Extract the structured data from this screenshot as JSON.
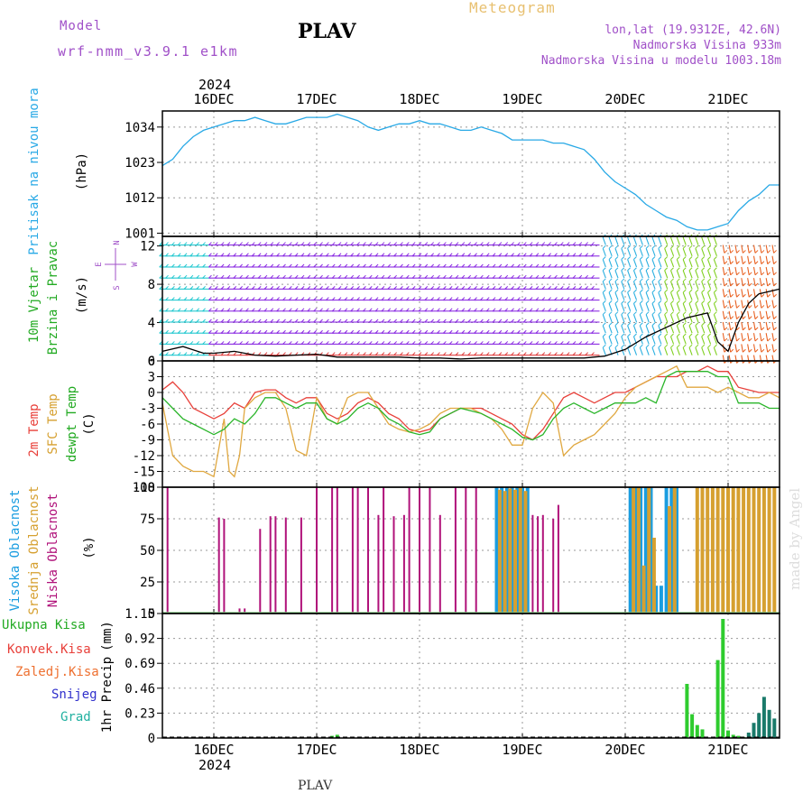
{
  "header": {
    "model_label": "Model",
    "model_name": "wrf-nmm_v3.9.1 e1km",
    "station": "PLAV",
    "meteogram_label": "Meteogram",
    "lonlat": "lon,lat (19.9312E, 42.6N)",
    "elevation": "Nadmorska Visina 933m",
    "model_elevation": "Nadmorska Visina u modelu 1003.18m",
    "footer_station": "PLAV",
    "watermark": "made by Angel"
  },
  "colors": {
    "pressure": "#29a9e6",
    "temp2m": "#e8403a",
    "sfc_temp": "#e0a840",
    "dewpt": "#2ab52a",
    "high_cloud": "#1a9de0",
    "mid_cloud": "#d6a030",
    "low_cloud": "#b0127a",
    "precip_total": "#2ecc2e",
    "precip_alt": "#1a7a6a",
    "purple_text": "#a050c8",
    "orange_text": "#e8c070"
  },
  "chart_data": [
    {
      "type": "line",
      "panel": "pressure",
      "ylabel": "Pritisak na nivou mora",
      "unit": "(hPa)",
      "ylim": [
        1000,
        1039
      ],
      "yticks": [
        1001,
        1012,
        1023,
        1034
      ],
      "x_range_days": [
        15.5,
        21.5
      ],
      "x_tick_labels": [
        "16DEC",
        "17DEC",
        "18DEC",
        "19DEC",
        "20DEC",
        "21DEC"
      ],
      "top_year": "2024",
      "bottom_year": "2024",
      "series": [
        {
          "color": "#29a9e6",
          "x": [
            15.5,
            15.6,
            15.7,
            15.8,
            15.9,
            16.0,
            16.1,
            16.2,
            16.3,
            16.4,
            16.5,
            16.6,
            16.7,
            16.8,
            16.9,
            17.0,
            17.1,
            17.2,
            17.3,
            17.4,
            17.5,
            17.6,
            17.7,
            17.8,
            17.9,
            18.0,
            18.1,
            18.2,
            18.3,
            18.4,
            18.5,
            18.6,
            18.7,
            18.8,
            18.9,
            19.0,
            19.1,
            19.2,
            19.3,
            19.4,
            19.5,
            19.6,
            19.7,
            19.8,
            19.9,
            20.0,
            20.1,
            20.2,
            20.3,
            20.4,
            20.5,
            20.6,
            20.7,
            20.8,
            20.9,
            21.0,
            21.1,
            21.2,
            21.3,
            21.4,
            21.5
          ],
          "y": [
            1022,
            1024,
            1028,
            1031,
            1033,
            1034,
            1035,
            1036,
            1036,
            1037,
            1036,
            1035,
            1035,
            1036,
            1037,
            1037,
            1037,
            1038,
            1037,
            1036,
            1034,
            1033,
            1034,
            1035,
            1035,
            1036,
            1035,
            1035,
            1034,
            1033,
            1033,
            1034,
            1033,
            1032,
            1030,
            1030,
            1030,
            1030,
            1029,
            1029,
            1028,
            1027,
            1024,
            1020,
            1017,
            1015,
            1013,
            1010,
            1008,
            1006,
            1005,
            1003,
            1002,
            1002,
            1003,
            1004,
            1008,
            1011,
            1013,
            1016,
            1016
          ]
        }
      ]
    },
    {
      "type": "line",
      "panel": "wind",
      "ylabel": "10m Vjetar Brzina i Pravac",
      "unit": "(m/s)",
      "compass": [
        "N",
        "E",
        "S",
        "W"
      ],
      "ylim": [
        0,
        13
      ],
      "yticks": [
        0,
        4,
        8,
        12
      ],
      "series": [
        {
          "name": "wind speed",
          "color": "#000000",
          "x": [
            15.5,
            15.7,
            15.9,
            16.0,
            16.2,
            16.4,
            16.6,
            16.8,
            17.0,
            17.2,
            17.4,
            17.6,
            17.8,
            18.0,
            18.2,
            18.4,
            18.6,
            18.8,
            19.0,
            19.2,
            19.4,
            19.6,
            19.8,
            20.0,
            20.2,
            20.4,
            20.6,
            20.8,
            20.9,
            21.0,
            21.1,
            21.2,
            21.3,
            21.5
          ],
          "y": [
            1,
            1.5,
            0.8,
            0.8,
            1.0,
            0.6,
            0.5,
            0.6,
            0.7,
            0.4,
            0.4,
            0.4,
            0.4,
            0.3,
            0.3,
            0.2,
            0.3,
            0.3,
            0.3,
            0.3,
            0.3,
            0.3,
            0.5,
            1.2,
            2.5,
            3.5,
            4.5,
            5.0,
            2.0,
            1.0,
            4.0,
            6.0,
            7.0,
            7.5
          ]
        }
      ]
    },
    {
      "type": "line",
      "panel": "temperature",
      "ylabel": "2m Temp SFC Temp dewpt Temp",
      "unit": "(C)",
      "ylim": [
        -18,
        6
      ],
      "yticks": [
        -18,
        -15,
        -12,
        -9,
        -6,
        -3,
        0,
        3,
        6
      ],
      "series": [
        {
          "name": "2m Temp",
          "color": "#e8403a",
          "x": [
            15.5,
            15.6,
            15.7,
            15.8,
            15.9,
            16.0,
            16.1,
            16.2,
            16.3,
            16.4,
            16.5,
            16.6,
            16.7,
            16.8,
            16.9,
            17.0,
            17.1,
            17.2,
            17.3,
            17.4,
            17.5,
            17.6,
            17.7,
            17.8,
            17.9,
            18.0,
            18.1,
            18.2,
            18.3,
            18.4,
            18.5,
            18.6,
            18.7,
            18.8,
            18.9,
            19.0,
            19.1,
            19.2,
            19.3,
            19.4,
            19.5,
            19.6,
            19.7,
            19.8,
            19.9,
            20.0,
            20.1,
            20.2,
            20.3,
            20.4,
            20.5,
            20.6,
            20.7,
            20.8,
            20.9,
            21.0,
            21.1,
            21.2,
            21.3,
            21.4,
            21.5
          ],
          "y": [
            0.5,
            2,
            0,
            -3,
            -4,
            -5,
            -4,
            -2,
            -3,
            0,
            0.5,
            0.5,
            -1,
            -2,
            -1,
            -1,
            -4,
            -5,
            -4,
            -2,
            -1,
            -2,
            -4,
            -5,
            -7,
            -7.5,
            -7,
            -5,
            -4,
            -3,
            -3,
            -3,
            -4,
            -5,
            -6,
            -8,
            -9,
            -7,
            -4,
            -1,
            0,
            -1,
            -2,
            -1,
            0,
            0,
            1,
            2,
            3,
            3,
            3,
            4,
            4,
            5,
            4,
            4,
            1,
            0.5,
            0,
            0,
            0
          ]
        },
        {
          "name": "SFC Temp",
          "color": "#e0a840",
          "x": [
            15.5,
            15.6,
            15.7,
            15.8,
            15.9,
            16.0,
            16.1,
            16.15,
            16.2,
            16.25,
            16.3,
            16.4,
            16.5,
            16.6,
            16.7,
            16.8,
            16.9,
            17.0,
            17.1,
            17.2,
            17.3,
            17.4,
            17.5,
            17.6,
            17.7,
            17.8,
            17.9,
            18.0,
            18.1,
            18.2,
            18.3,
            18.4,
            18.5,
            18.6,
            18.7,
            18.8,
            18.9,
            19.0,
            19.1,
            19.2,
            19.3,
            19.4,
            19.5,
            19.6,
            19.7,
            19.8,
            19.9,
            20.0,
            20.1,
            20.2,
            20.3,
            20.4,
            20.5,
            20.6,
            20.7,
            20.8,
            20.9,
            21.0,
            21.1,
            21.2,
            21.3,
            21.4,
            21.5
          ],
          "y": [
            -2,
            -12,
            -14,
            -15,
            -15,
            -16,
            -5,
            -15,
            -16,
            -12,
            -3,
            -1,
            0,
            0,
            -3,
            -11,
            -12,
            -1,
            -5,
            -6,
            -1,
            0,
            0,
            -3,
            -6,
            -7,
            -7.5,
            -7,
            -6,
            -4,
            -3,
            -3,
            -3,
            -4,
            -5,
            -7,
            -10,
            -10,
            -3,
            0,
            -2,
            -12,
            -10,
            -9,
            -8,
            -6,
            -4,
            -1,
            1,
            2,
            3,
            4,
            5,
            1,
            1,
            1,
            0,
            1,
            0,
            -1,
            -1,
            0,
            -1
          ]
        },
        {
          "name": "dewpt Temp",
          "color": "#2ab52a",
          "x": [
            15.5,
            15.6,
            15.7,
            15.8,
            15.9,
            16.0,
            16.1,
            16.2,
            16.3,
            16.4,
            16.5,
            16.6,
            16.7,
            16.8,
            16.9,
            17.0,
            17.1,
            17.2,
            17.3,
            17.4,
            17.5,
            17.6,
            17.7,
            17.8,
            17.9,
            18.0,
            18.1,
            18.2,
            18.3,
            18.4,
            18.5,
            18.6,
            18.7,
            18.8,
            18.9,
            19.0,
            19.1,
            19.2,
            19.3,
            19.4,
            19.5,
            19.6,
            19.7,
            19.8,
            19.9,
            20.0,
            20.1,
            20.2,
            20.3,
            20.4,
            20.5,
            20.6,
            20.7,
            20.8,
            20.9,
            21.0,
            21.1,
            21.2,
            21.3,
            21.4,
            21.5
          ],
          "y": [
            -1,
            -3,
            -5,
            -6,
            -7,
            -8,
            -7,
            -5,
            -6,
            -4,
            -1,
            -1,
            -2,
            -3,
            -2,
            -2,
            -5,
            -6,
            -5,
            -3,
            -2,
            -3,
            -5,
            -6,
            -7.5,
            -8,
            -7.5,
            -5,
            -4,
            -3,
            -3.5,
            -4,
            -5,
            -6,
            -7,
            -8.5,
            -9,
            -8,
            -5,
            -3,
            -2,
            -3,
            -4,
            -3,
            -2,
            -2,
            -2,
            -1,
            -2,
            3,
            4,
            4,
            4,
            4,
            3,
            3,
            -2,
            -2,
            -2,
            -3,
            -3
          ]
        }
      ]
    },
    {
      "type": "bar",
      "panel": "cloud",
      "ylabel": "Visoka Oblacnost Srednja Oblacnost Niska Oblacnost",
      "unit": "(%)",
      "ylim": [
        0,
        100
      ],
      "yticks": [
        0,
        25,
        50,
        75,
        100
      ],
      "series": [
        {
          "name": "Niska Oblacnost",
          "color": "#b0127a",
          "x": [
            15.55,
            16.05,
            16.1,
            16.25,
            16.3,
            16.45,
            16.55,
            16.6,
            16.7,
            16.85,
            17.0,
            17.15,
            17.2,
            17.35,
            17.4,
            17.5,
            17.6,
            17.65,
            17.75,
            17.85,
            17.9,
            18.0,
            18.1,
            18.2,
            18.35,
            18.45,
            18.55,
            19.0,
            19.05,
            19.1,
            19.15,
            19.2,
            19.3,
            19.35
          ],
          "y": [
            100,
            76,
            75,
            4,
            4,
            67,
            77,
            77,
            76,
            76,
            100,
            100,
            100,
            100,
            100,
            100,
            78,
            100,
            77,
            78,
            100,
            100,
            100,
            78,
            100,
            100,
            100,
            75,
            100,
            78,
            77,
            78,
            75,
            86
          ]
        },
        {
          "name": "Visoka Oblacnost",
          "color": "#1a9de0",
          "x": [
            18.75,
            18.8,
            18.85,
            18.9,
            18.95,
            19.0,
            19.05,
            20.05,
            20.1,
            20.15,
            20.2,
            20.25,
            20.3,
            20.35,
            20.4,
            20.45,
            20.5
          ],
          "y": [
            100,
            100,
            100,
            100,
            100,
            100,
            100,
            100,
            100,
            100,
            100,
            100,
            22,
            22,
            100,
            100,
            100
          ]
        },
        {
          "name": "Srednja Oblacnost",
          "color": "#d6a030",
          "x": [
            18.78,
            18.83,
            18.88,
            18.93,
            18.98,
            19.03,
            20.08,
            20.13,
            20.18,
            20.23,
            20.28,
            20.43,
            20.48,
            20.7,
            20.75,
            20.8,
            20.85,
            20.9,
            20.95,
            21.0,
            21.05,
            21.1,
            21.15,
            21.2,
            21.25,
            21.3,
            21.35,
            21.4,
            21.45
          ],
          "y": [
            98,
            97,
            99,
            98,
            100,
            97,
            100,
            100,
            38,
            100,
            60,
            85,
            100,
            100,
            100,
            100,
            100,
            100,
            100,
            100,
            100,
            100,
            100,
            100,
            100,
            100,
            100,
            100,
            100
          ]
        }
      ]
    },
    {
      "type": "bar",
      "panel": "precip",
      "ylabel": "1hr Precip",
      "unit": "(mm)",
      "ylim": [
        0,
        1.15
      ],
      "yticks": [
        0,
        0.23,
        0.46,
        0.69,
        0.92,
        1.15
      ],
      "legend": [
        "Ukupna Kisa",
        "Konvek.Kisa",
        "Zaledj.Kisa",
        "Snijeg",
        "Grad"
      ],
      "series": [
        {
          "name": "Ukupna Kisa",
          "color": "#2ecc2e",
          "x": [
            17.15,
            17.2,
            20.6,
            20.65,
            20.7,
            20.75,
            20.9,
            20.95,
            21.0,
            21.05,
            21.1,
            21.15
          ],
          "y": [
            0.02,
            0.03,
            0.5,
            0.22,
            0.12,
            0.08,
            0.72,
            1.1,
            0.07,
            0.03,
            0.02,
            0.01
          ]
        },
        {
          "name": "Snijeg",
          "color": "#1a7a6a",
          "x": [
            21.2,
            21.25,
            21.3,
            21.35,
            21.4,
            21.45
          ],
          "y": [
            0.05,
            0.14,
            0.23,
            0.38,
            0.26,
            0.18
          ]
        }
      ]
    }
  ]
}
